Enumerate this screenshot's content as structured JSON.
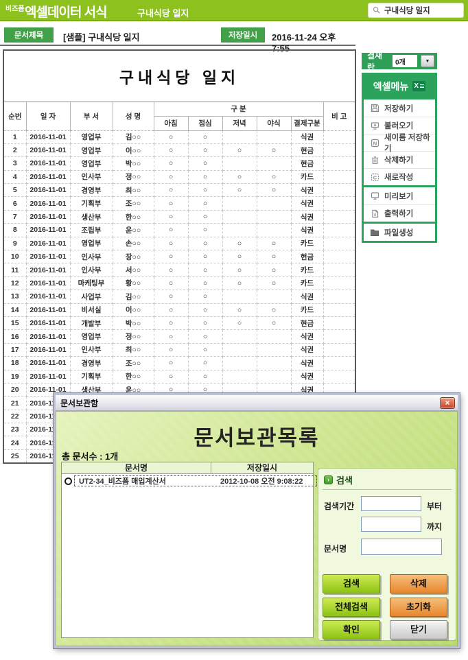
{
  "colors": {
    "topbar_green": "#8cc11e",
    "label_green": "#42a048",
    "menu_green": "#2ba35d",
    "dialog_body_green": "#cfe691",
    "button_green": "#8cc313",
    "button_orange": "#e8872e",
    "close_red": "#c53f27"
  },
  "header": {
    "logo_small": "비즈폼",
    "logo_main": "엑셀데이터 서식",
    "logo_sub": "구내식당 일지",
    "search_value": "구내식당 일지",
    "search_icon": "magnifier-icon"
  },
  "docbar": {
    "title_label": "문서제목",
    "title_value": "[샘플] 구내식당 일지",
    "saved_label": "저장일시",
    "saved_value": "2016-11-24  오후 7:55"
  },
  "sheet": {
    "title": "구내식당 일지",
    "headers": {
      "no": "순번",
      "date": "일  자",
      "dept": "부  서",
      "name": "성  명",
      "group": "구  분",
      "breakfast": "아침",
      "lunch": "점심",
      "dinner": "저녁",
      "snack": "야식",
      "payment": "결제구분",
      "note": "비  고"
    },
    "rows": [
      [
        "1",
        "2016-11-01",
        "영업부",
        "김○○",
        "○",
        "○",
        "",
        "",
        "식권",
        ""
      ],
      [
        "2",
        "2016-11-01",
        "영업부",
        "이○○",
        "○",
        "○",
        "○",
        "○",
        "현금",
        ""
      ],
      [
        "3",
        "2016-11-01",
        "영업부",
        "박○○",
        "○",
        "○",
        "",
        "",
        "현금",
        ""
      ],
      [
        "4",
        "2016-11-01",
        "인사부",
        "정○○",
        "○",
        "○",
        "○",
        "○",
        "카드",
        ""
      ],
      [
        "5",
        "2016-11-01",
        "경영부",
        "최○○",
        "○",
        "○",
        "○",
        "○",
        "식권",
        ""
      ],
      [
        "6",
        "2016-11-01",
        "기획부",
        "조○○",
        "○",
        "○",
        "",
        "",
        "식권",
        ""
      ],
      [
        "7",
        "2016-11-01",
        "생산부",
        "한○○",
        "○",
        "○",
        "",
        "",
        "식권",
        ""
      ],
      [
        "8",
        "2016-11-01",
        "조립부",
        "윤○○",
        "○",
        "○",
        "",
        "",
        "식권",
        ""
      ],
      [
        "9",
        "2016-11-01",
        "영업부",
        "손○○",
        "○",
        "○",
        "○",
        "○",
        "카드",
        ""
      ],
      [
        "10",
        "2016-11-01",
        "인사부",
        "장○○",
        "○",
        "○",
        "○",
        "○",
        "현금",
        ""
      ],
      [
        "11",
        "2016-11-01",
        "인사부",
        "서○○",
        "○",
        "○",
        "○",
        "○",
        "카드",
        ""
      ],
      [
        "12",
        "2016-11-01",
        "마케팅부",
        "황○○",
        "○",
        "○",
        "○",
        "○",
        "카드",
        ""
      ],
      [
        "13",
        "2016-11-01",
        "사업부",
        "김○○",
        "○",
        "○",
        "",
        "",
        "식권",
        ""
      ],
      [
        "14",
        "2016-11-01",
        "비서실",
        "이○○",
        "○",
        "○",
        "○",
        "○",
        "카드",
        ""
      ],
      [
        "15",
        "2016-11-01",
        "개발부",
        "박○○",
        "○",
        "○",
        "○",
        "○",
        "현금",
        ""
      ],
      [
        "16",
        "2016-11-01",
        "영업부",
        "정○○",
        "○",
        "○",
        "",
        "",
        "식권",
        ""
      ],
      [
        "17",
        "2016-11-01",
        "인사부",
        "최○○",
        "○",
        "○",
        "",
        "",
        "식권",
        ""
      ],
      [
        "18",
        "2016-11-01",
        "경영부",
        "조○○",
        "○",
        "○",
        "",
        "",
        "식권",
        ""
      ],
      [
        "19",
        "2016-11-01",
        "기획부",
        "한○○",
        "○",
        "○",
        "",
        "",
        "식권",
        ""
      ],
      [
        "20",
        "2016-11-01",
        "생산부",
        "윤○○",
        "○",
        "○",
        "",
        "",
        "식권",
        ""
      ],
      [
        "21",
        "2016-11-01",
        "",
        "",
        "",
        "",
        "",
        "",
        "",
        ""
      ],
      [
        "22",
        "2016-11-01",
        "",
        "",
        "",
        "",
        "",
        "",
        "",
        ""
      ],
      [
        "23",
        "2016-11-01",
        "",
        "",
        "",
        "",
        "",
        "",
        "",
        ""
      ],
      [
        "24",
        "2016-11-01",
        "",
        "",
        "",
        "",
        "",
        "",
        "",
        ""
      ],
      [
        "25",
        "2016-11-01",
        "",
        "",
        "",
        "",
        "",
        "",
        "",
        ""
      ]
    ]
  },
  "sidebar": {
    "approval_label": "결재란",
    "approval_value": "0개",
    "dropdown_icon": "chevron-down-icon",
    "menu_title": "엑셀메뉴",
    "menu_title_icon": "excel-icon",
    "groups": [
      {
        "items": [
          {
            "icon": "save-icon",
            "label": "저장하기"
          },
          {
            "icon": "load-icon",
            "label": "불러오기"
          },
          {
            "icon": "save-as-icon",
            "label": "새이름 저장하기"
          },
          {
            "icon": "trash-icon",
            "label": "삭제하기"
          },
          {
            "icon": "new-doc-icon",
            "label": "새로작성"
          }
        ]
      },
      {
        "items": [
          {
            "icon": "preview-icon",
            "label": "미리보기"
          },
          {
            "icon": "print-icon",
            "label": "출력하기"
          }
        ]
      },
      {
        "items": [
          {
            "icon": "folder-icon",
            "label": "파일생성"
          }
        ]
      }
    ]
  },
  "dialog": {
    "window_title": "문서보관함",
    "close_icon": "close-icon",
    "heading": "문서보관목록",
    "count_text": "총 문서수 : 1개",
    "list": {
      "col_name": "문서명",
      "col_saved": "저장일시",
      "rows": [
        {
          "selected": true,
          "name": "UT2-34_비즈폼 매입계산서",
          "saved": "2012-10-08 오전 9:08:22"
        }
      ]
    },
    "search": {
      "section_label": "검색",
      "period_label": "검색기간",
      "from_suffix": "부터",
      "to_suffix": "까지",
      "name_label": "문서명",
      "period_from_value": "",
      "period_to_value": "",
      "doc_name_value": ""
    },
    "buttons": [
      {
        "label": "검색",
        "style": "green"
      },
      {
        "label": "삭제",
        "style": "orange"
      },
      {
        "label": "전체검색",
        "style": "green"
      },
      {
        "label": "초기화",
        "style": "orange"
      },
      {
        "label": "확인",
        "style": "green"
      },
      {
        "label": "닫기",
        "style": "silver"
      }
    ]
  }
}
